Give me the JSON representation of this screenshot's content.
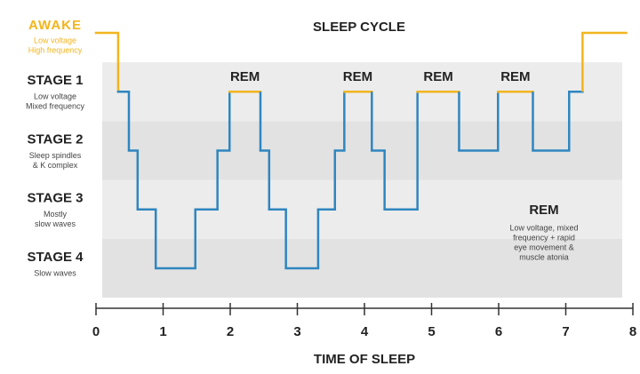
{
  "chart_data": {
    "type": "line",
    "step": "after",
    "title": "SLEEP CYCLE",
    "xlabel": "TIME OF SLEEP",
    "xlim": [
      0,
      8
    ],
    "xticks": [
      0,
      1,
      2,
      3,
      4,
      5,
      6,
      7,
      8
    ],
    "ylim": [
      0,
      4
    ],
    "inverted": true,
    "yticks": [
      {
        "value": 0,
        "label": "AWAKE",
        "description": [
          "Low voltage",
          "High frequency"
        ]
      },
      {
        "value": 1,
        "label": "STAGE 1",
        "description": [
          "Low voltage",
          "Mixed frequency"
        ]
      },
      {
        "value": 2,
        "label": "STAGE 2",
        "description": [
          "Sleep spindles",
          "& K complex"
        ]
      },
      {
        "value": 3,
        "label": "STAGE 3",
        "description": [
          "Mostly",
          "slow waves"
        ]
      },
      {
        "value": 4,
        "label": "STAGE 4",
        "description": [
          "Slow waves"
        ]
      }
    ],
    "color": "#2f86bf",
    "highlight_color": "#f2b51f",
    "band_colors": [
      "#ffffff",
      "#ececec",
      "#e2e2e2",
      "#ececec",
      "#e2e2e2"
    ],
    "x": [
      0,
      0.33,
      0.49,
      0.62,
      0.89,
      1.48,
      1.81,
      1.99,
      2.45,
      2.58,
      2.83,
      3.31,
      3.56,
      3.7,
      4.11,
      4.3,
      4.79,
      5.41,
      5.99,
      6.51,
      7.05,
      7.25,
      7.9
    ],
    "values": [
      0,
      1,
      2,
      3,
      4,
      3,
      2,
      1,
      2,
      3,
      4,
      3,
      2,
      1,
      2,
      3,
      1,
      2,
      1,
      2,
      1,
      0,
      0
    ],
    "annotations": [
      {
        "text": "REM",
        "x": 2.22
      },
      {
        "text": "REM",
        "x": 3.9
      },
      {
        "text": "REM",
        "x": 5.1
      },
      {
        "text": "REM",
        "x": 6.25
      }
    ],
    "legend": {
      "title": "REM",
      "description": [
        "Low voltage, mixed",
        "frequency + rapid",
        "eye movement &",
        "muscle atonia"
      ]
    }
  }
}
